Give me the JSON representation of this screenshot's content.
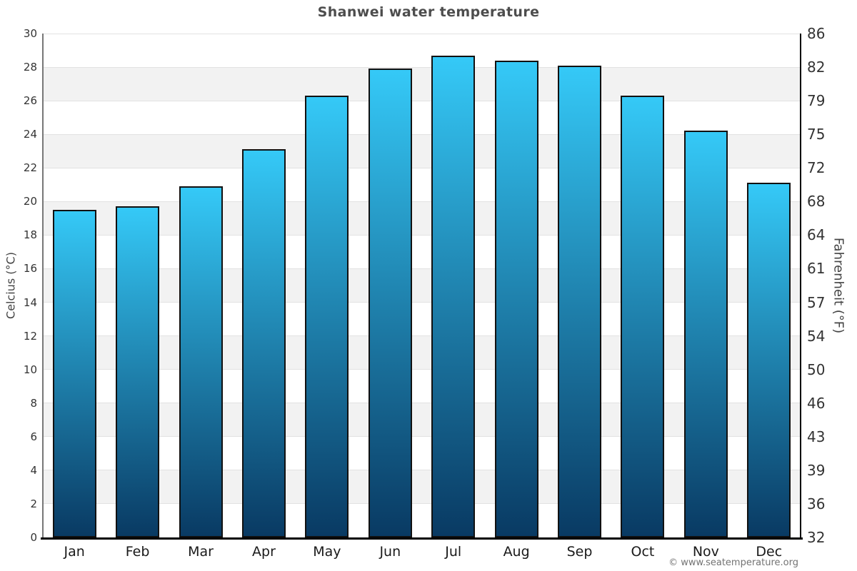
{
  "chart_data": {
    "type": "bar",
    "title": "Shanwei water temperature",
    "ylabel_left": "Celcius (°C)",
    "ylabel_right": "Fahrenheit (°F)",
    "categories": [
      "Jan",
      "Feb",
      "Mar",
      "Apr",
      "May",
      "Jun",
      "Jul",
      "Aug",
      "Sep",
      "Oct",
      "Nov",
      "Dec"
    ],
    "values": [
      19.5,
      19.7,
      20.9,
      23.1,
      26.3,
      27.9,
      28.7,
      28.4,
      28.1,
      26.3,
      24.2,
      21.1
    ],
    "ylim": [
      0,
      30
    ],
    "ytick_step": 2,
    "yticks": [
      {
        "celsius": "0",
        "fahrenheit": "32"
      },
      {
        "celsius": "2",
        "fahrenheit": "36"
      },
      {
        "celsius": "4",
        "fahrenheit": "39"
      },
      {
        "celsius": "6",
        "fahrenheit": "43"
      },
      {
        "celsius": "8",
        "fahrenheit": "46"
      },
      {
        "celsius": "10",
        "fahrenheit": "50"
      },
      {
        "celsius": "12",
        "fahrenheit": "54"
      },
      {
        "celsius": "14",
        "fahrenheit": "57"
      },
      {
        "celsius": "16",
        "fahrenheit": "61"
      },
      {
        "celsius": "18",
        "fahrenheit": "64"
      },
      {
        "celsius": "20",
        "fahrenheit": "68"
      },
      {
        "celsius": "22",
        "fahrenheit": "72"
      },
      {
        "celsius": "24",
        "fahrenheit": "75"
      },
      {
        "celsius": "26",
        "fahrenheit": "79"
      },
      {
        "celsius": "28",
        "fahrenheit": "82"
      },
      {
        "celsius": "30",
        "fahrenheit": "86"
      }
    ],
    "grid": "alternating-bands",
    "legend": "none",
    "copyright": "© www.seatemperature.org",
    "colors": {
      "bar_gradient_top": "#35c9f7",
      "bar_gradient_bottom": "#093a63",
      "bar_border": "#111111",
      "band_shade": "#f2f2f2",
      "band_plain": "#ffffff",
      "gridline": "#e2e2e2",
      "axis_left_line": "#777777",
      "axis_dark_line": "#000000",
      "title_text": "#4d4d4d",
      "tick_text": "#333333",
      "month_text": "#1a1a1a",
      "axis_label_text": "#444444",
      "copyright_text": "#737373"
    }
  }
}
